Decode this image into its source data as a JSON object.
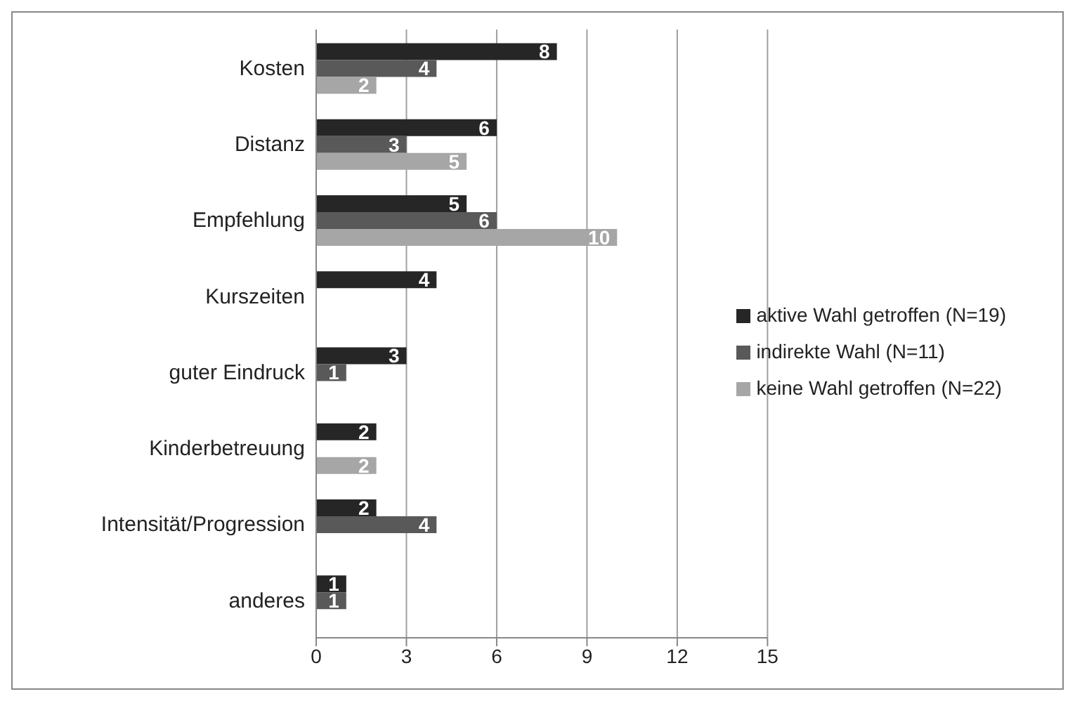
{
  "chart_data": {
    "type": "bar",
    "orientation": "horizontal",
    "categories": [
      "Kosten",
      "Distanz",
      "Empfehlung",
      "Kurszeiten",
      "guter Eindruck",
      "Kinderbetreuung",
      "Intensität/Progression",
      "anderes"
    ],
    "series": [
      {
        "name": "aktive Wahl getroffen (N=19)",
        "color": "#262626",
        "values": [
          8,
          6,
          5,
          4,
          3,
          2,
          2,
          1
        ]
      },
      {
        "name": "indirekte Wahl (N=11)",
        "color": "#595959",
        "values": [
          4,
          3,
          6,
          null,
          1,
          null,
          4,
          1
        ]
      },
      {
        "name": "keine Wahl getroffen (N=22)",
        "color": "#a6a6a6",
        "values": [
          2,
          5,
          10,
          null,
          null,
          2,
          null,
          null
        ]
      }
    ],
    "xlim": [
      0,
      15
    ],
    "xticks": [
      0,
      3,
      6,
      9,
      12,
      15
    ],
    "grid": "x",
    "legend": "right",
    "data_labels": true
  }
}
